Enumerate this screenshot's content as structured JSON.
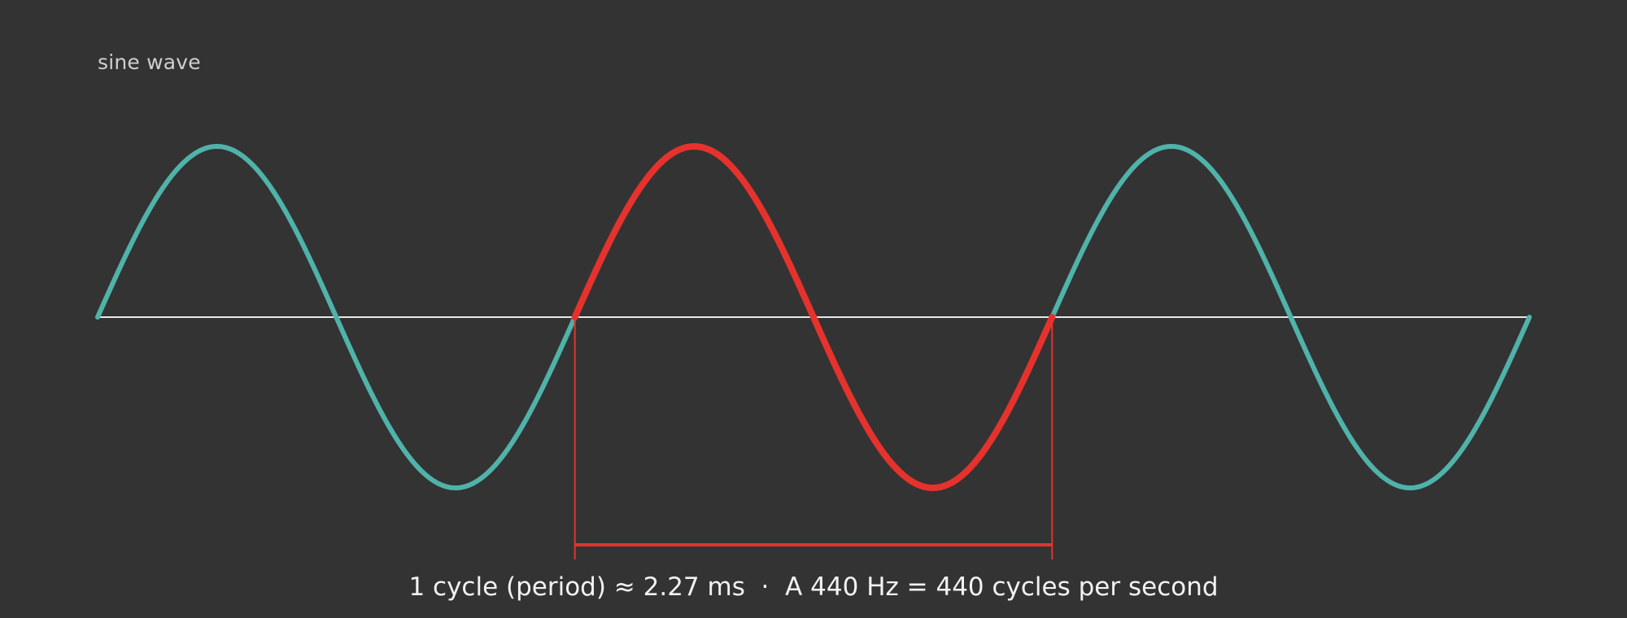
{
  "diagram": {
    "title": "sine wave",
    "caption": "1 cycle (period) ≈ 2.27 ms  ·  A 440 Hz = 440 cycles per second",
    "cycles_shown": 3,
    "highlighted_cycle_index": 1,
    "colors": {
      "background": "#333333",
      "wave": "#4fb3aa",
      "highlight": "#e5322d",
      "axis": "#e8e8e8",
      "title_text": "#cfcfcf",
      "caption_text": "#f2f2f2"
    }
  }
}
